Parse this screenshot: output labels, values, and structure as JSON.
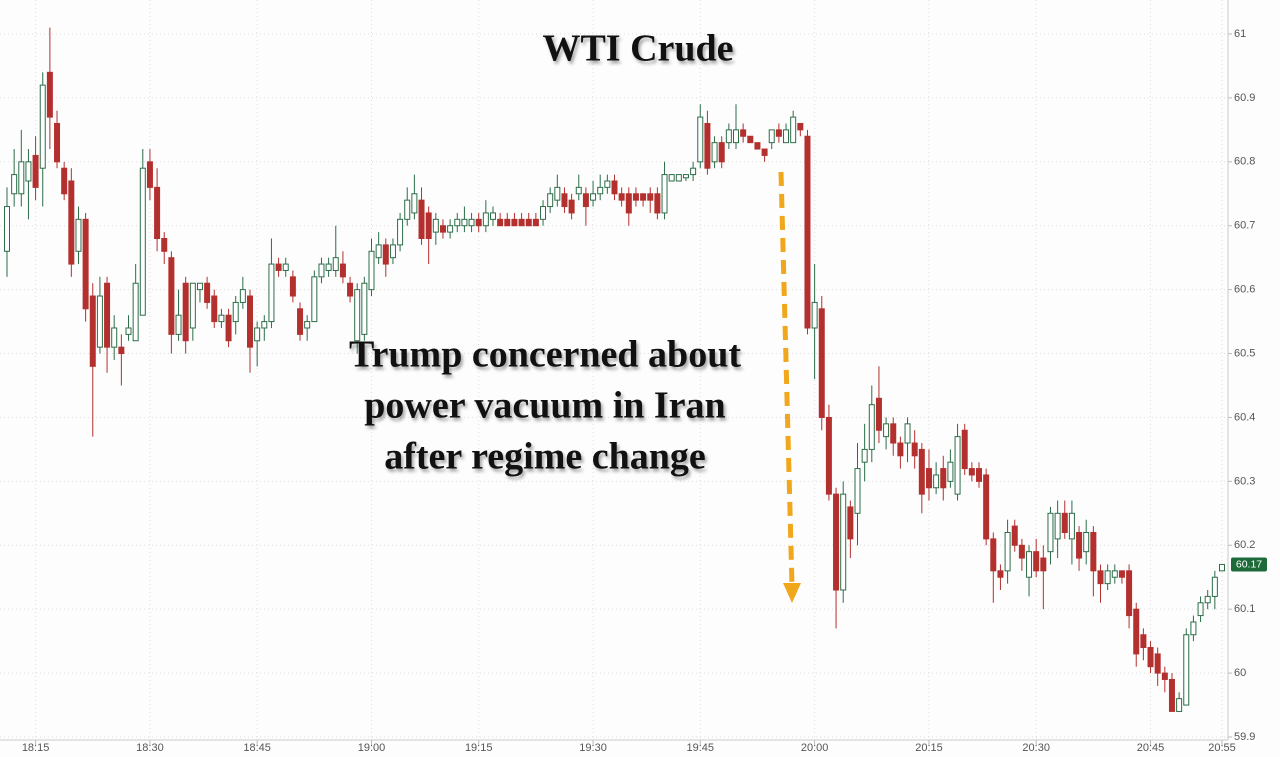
{
  "chart_data": {
    "type": "candlestick",
    "title": "WTI Crude",
    "annotation": [
      "Trump concerned about",
      "power vacuum in Iran",
      "after regime change"
    ],
    "categories": [
      null,
      null,
      null,
      null,
      "18:15",
      null,
      null,
      null,
      null,
      null,
      null,
      null,
      null,
      null,
      null,
      null,
      null,
      null,
      null,
      null,
      "18:30",
      null,
      null,
      null,
      null,
      null,
      null,
      null,
      null,
      null,
      null,
      null,
      null,
      null,
      null,
      "18:45",
      null,
      null,
      null,
      null,
      null,
      null,
      null,
      null,
      null,
      null,
      null,
      null,
      null,
      null,
      null,
      "19:00",
      null,
      null,
      null,
      null,
      null,
      null,
      null,
      null,
      null,
      null,
      null,
      null,
      null,
      null,
      "19:15",
      null,
      null,
      null,
      null,
      null,
      null,
      null,
      null,
      null,
      null,
      null,
      null,
      null,
      null,
      null,
      "19:30",
      null,
      null,
      null,
      null,
      null,
      null,
      null,
      null,
      null,
      null,
      null,
      null,
      null,
      null,
      "19:45",
      null,
      null,
      null,
      null,
      null,
      null,
      null,
      null,
      null,
      null,
      null,
      null,
      null,
      null,
      null,
      "20:00",
      null,
      null,
      null,
      null,
      null,
      null,
      null,
      null,
      null,
      null,
      null,
      null,
      null,
      null,
      null,
      "20:15",
      null,
      null,
      null,
      null,
      null,
      null,
      null,
      null,
      null,
      null,
      null,
      null,
      null,
      null,
      "20:30",
      null,
      null,
      null,
      null,
      null,
      null,
      null,
      null,
      null,
      null,
      null,
      null,
      null,
      null,
      null,
      "20:45",
      null,
      null,
      null,
      null,
      null,
      null,
      null,
      null,
      null,
      "20:55"
    ],
    "open": [
      60.66,
      60.75,
      60.75,
      60.77,
      60.81,
      60.79,
      60.94,
      60.86,
      60.79,
      60.77,
      60.66,
      60.71,
      60.59,
      60.51,
      60.61,
      60.51,
      60.51,
      60.53,
      60.52,
      60.56,
      60.8,
      60.76,
      60.68,
      60.65,
      60.53,
      60.61,
      60.54,
      60.6,
      60.61,
      60.59,
      60.55,
      60.56,
      60.55,
      60.58,
      60.59,
      60.52,
      60.54,
      60.55,
      60.64,
      60.63,
      60.62,
      60.57,
      60.54,
      60.55,
      60.62,
      60.63,
      60.63,
      60.64,
      60.61,
      60.52,
      60.53,
      60.6,
      60.65,
      60.67,
      60.65,
      60.67,
      60.71,
      60.72,
      60.74,
      60.72,
      60.69,
      60.7,
      60.69,
      60.7,
      60.7,
      60.7,
      60.71,
      60.7,
      60.71,
      60.71,
      60.71,
      60.71,
      60.71,
      60.71,
      60.71,
      60.71,
      60.73,
      60.74,
      60.75,
      60.74,
      60.75,
      60.75,
      60.74,
      60.75,
      60.76,
      60.77,
      60.75,
      60.75,
      60.75,
      60.75,
      60.75,
      60.75,
      60.72,
      60.77,
      60.77,
      60.775,
      60.78,
      60.8,
      60.86,
      60.8,
      60.83,
      60.83,
      60.83,
      60.85,
      60.84,
      60.83,
      60.82,
      60.83,
      60.85,
      60.83,
      60.83,
      60.86,
      60.84,
      60.54,
      60.57,
      60.4,
      60.28,
      60.13,
      60.26,
      60.25,
      60.33,
      60.35,
      60.43,
      60.37,
      60.39,
      60.36,
      60.36,
      60.36,
      60.35,
      60.32,
      60.29,
      60.32,
      60.3,
      60.28,
      60.38,
      60.32,
      60.32,
      60.31,
      60.21,
      60.16,
      60.16,
      60.23,
      60.2,
      60.15,
      60.19,
      60.18,
      60.19,
      60.21,
      60.25,
      60.21,
      60.22,
      60.19,
      60.22,
      60.16,
      60.14,
      60.15,
      60.16,
      60.16,
      60.1,
      60.06,
      60.04,
      60.03,
      60.0,
      59.99,
      59.94,
      59.95,
      60.06,
      60.09,
      60.11,
      60.12,
      60.16
    ],
    "high": [
      60.76,
      60.82,
      60.85,
      60.82,
      60.84,
      60.94,
      61.01,
      60.88,
      60.8,
      60.79,
      60.73,
      60.72,
      60.61,
      60.62,
      60.62,
      60.56,
      60.53,
      60.56,
      60.64,
      60.82,
      60.82,
      60.79,
      60.69,
      60.66,
      60.6,
      60.62,
      60.61,
      60.61,
      60.62,
      60.6,
      60.57,
      60.57,
      60.59,
      60.62,
      60.6,
      60.55,
      60.56,
      60.68,
      60.65,
      60.65,
      60.63,
      60.58,
      60.56,
      60.63,
      60.65,
      60.65,
      60.7,
      60.66,
      60.62,
      60.61,
      60.62,
      60.68,
      60.69,
      60.68,
      60.68,
      60.72,
      60.76,
      60.78,
      60.76,
      60.73,
      60.72,
      60.71,
      60.71,
      60.72,
      60.73,
      60.72,
      60.72,
      60.74,
      60.73,
      60.72,
      60.72,
      60.72,
      60.72,
      60.72,
      60.72,
      60.74,
      60.76,
      60.78,
      60.76,
      60.75,
      60.78,
      60.76,
      60.77,
      60.78,
      60.78,
      60.78,
      60.76,
      60.76,
      60.76,
      60.75,
      60.76,
      60.76,
      60.8,
      60.78,
      60.78,
      60.78,
      60.8,
      60.89,
      60.88,
      60.84,
      60.84,
      60.86,
      60.89,
      60.86,
      60.84,
      60.83,
      60.82,
      60.85,
      60.86,
      60.86,
      60.88,
      60.86,
      60.85,
      60.64,
      60.59,
      60.42,
      60.29,
      60.3,
      60.27,
      60.36,
      60.39,
      60.45,
      60.48,
      60.4,
      60.4,
      60.37,
      60.4,
      60.38,
      60.36,
      60.35,
      60.33,
      60.34,
      60.35,
      60.39,
      60.39,
      60.33,
      60.33,
      60.32,
      60.22,
      60.17,
      60.24,
      60.24,
      60.21,
      60.2,
      60.21,
      60.2,
      60.26,
      60.27,
      60.27,
      60.27,
      60.23,
      60.24,
      60.23,
      60.17,
      60.17,
      60.17,
      60.16,
      60.17,
      60.11,
      60.07,
      60.05,
      60.04,
      60.01,
      60.0,
      59.97,
      60.07,
      60.09,
      60.12,
      60.13,
      60.16,
      60.17
    ],
    "low": [
      60.62,
      60.73,
      60.73,
      60.71,
      60.74,
      60.73,
      60.82,
      60.79,
      60.74,
      60.62,
      60.64,
      60.55,
      60.37,
      60.5,
      60.47,
      60.49,
      60.45,
      60.52,
      60.52,
      60.56,
      60.74,
      60.66,
      60.64,
      60.5,
      60.52,
      60.5,
      60.52,
      60.58,
      60.57,
      60.54,
      60.54,
      60.51,
      60.53,
      60.57,
      60.47,
      60.48,
      60.52,
      60.54,
      60.62,
      60.62,
      60.58,
      60.52,
      60.52,
      60.55,
      60.61,
      60.62,
      60.62,
      60.61,
      60.58,
      60.5,
      60.52,
      60.59,
      60.64,
      60.62,
      60.64,
      60.66,
      60.7,
      60.71,
      60.67,
      60.64,
      60.67,
      60.68,
      60.68,
      60.69,
      60.69,
      60.69,
      60.69,
      60.69,
      60.7,
      60.7,
      60.7,
      60.7,
      60.7,
      60.7,
      60.7,
      60.7,
      60.72,
      60.73,
      60.72,
      60.71,
      60.74,
      60.7,
      60.73,
      60.74,
      60.75,
      60.74,
      60.73,
      60.7,
      60.73,
      60.73,
      60.72,
      60.71,
      60.71,
      60.77,
      60.77,
      60.77,
      60.77,
      60.79,
      60.78,
      60.79,
      60.79,
      60.82,
      60.82,
      60.83,
      60.83,
      60.82,
      60.8,
      60.82,
      60.83,
      60.83,
      60.83,
      60.84,
      60.53,
      60.46,
      60.38,
      60.27,
      60.07,
      60.11,
      60.18,
      60.2,
      60.3,
      60.33,
      60.36,
      60.35,
      60.34,
      60.32,
      60.33,
      60.32,
      60.25,
      60.27,
      60.28,
      60.27,
      60.29,
      60.27,
      60.31,
      60.3,
      60.29,
      60.2,
      60.11,
      60.13,
      60.14,
      60.19,
      60.16,
      60.12,
      60.15,
      60.1,
      60.17,
      60.18,
      60.21,
      60.17,
      60.16,
      60.17,
      60.12,
      60.11,
      60.13,
      60.14,
      60.14,
      60.07,
      60.01,
      60.02,
      60.0,
      59.98,
      59.97,
      59.94,
      59.94,
      59.95,
      60.05,
      60.08,
      60.1,
      60.1,
      60.16
    ],
    "close": [
      60.73,
      60.78,
      60.8,
      60.8,
      60.76,
      60.92,
      60.87,
      60.8,
      60.75,
      60.64,
      60.71,
      60.57,
      60.48,
      60.59,
      60.51,
      60.54,
      60.5,
      60.54,
      60.61,
      60.79,
      60.76,
      60.68,
      60.66,
      60.53,
      60.56,
      60.52,
      60.61,
      60.61,
      60.58,
      60.55,
      60.56,
      60.52,
      60.58,
      60.6,
      60.51,
      60.54,
      60.55,
      60.64,
      60.63,
      60.64,
      60.59,
      60.53,
      60.55,
      60.62,
      60.64,
      60.64,
      60.65,
      60.62,
      60.59,
      60.6,
      60.61,
      60.66,
      60.67,
      60.64,
      60.67,
      60.71,
      60.74,
      60.75,
      60.68,
      60.68,
      60.71,
      60.69,
      60.7,
      60.71,
      60.71,
      60.71,
      60.7,
      60.72,
      60.72,
      60.7,
      60.7,
      60.7,
      60.7,
      60.7,
      60.7,
      60.73,
      60.75,
      60.76,
      60.73,
      60.72,
      60.76,
      60.73,
      60.75,
      60.76,
      60.77,
      60.75,
      60.74,
      60.72,
      60.74,
      60.74,
      60.74,
      60.72,
      60.78,
      60.78,
      60.78,
      60.78,
      60.79,
      60.87,
      60.79,
      60.83,
      60.8,
      60.85,
      60.85,
      60.84,
      60.83,
      60.82,
      60.81,
      60.85,
      60.84,
      60.85,
      60.87,
      60.85,
      60.54,
      60.58,
      60.4,
      60.28,
      60.13,
      60.28,
      60.21,
      60.32,
      60.35,
      60.42,
      60.38,
      60.39,
      60.36,
      60.34,
      60.39,
      60.34,
      60.28,
      60.29,
      60.31,
      60.29,
      60.33,
      60.37,
      60.32,
      60.31,
      60.3,
      60.21,
      60.16,
      60.15,
      60.22,
      60.2,
      60.18,
      60.19,
      60.16,
      60.16,
      60.25,
      60.25,
      60.22,
      60.25,
      60.18,
      60.22,
      60.16,
      60.14,
      60.16,
      60.16,
      60.15,
      60.09,
      60.03,
      60.04,
      60.01,
      60.0,
      59.99,
      59.94,
      59.96,
      60.06,
      60.08,
      60.11,
      60.12,
      60.15,
      60.17
    ],
    "up_color": "#2b6e48",
    "down_color": "#b3302e",
    "last_value": 60.17,
    "last_color": "#1d6b3a",
    "ylim": [
      59.9,
      61
    ],
    "yticks": [
      59.9,
      60,
      60.1,
      60.2,
      60.3,
      60.4,
      60.5,
      60.6,
      60.7,
      60.8,
      60.9,
      61
    ],
    "grid": true
  }
}
